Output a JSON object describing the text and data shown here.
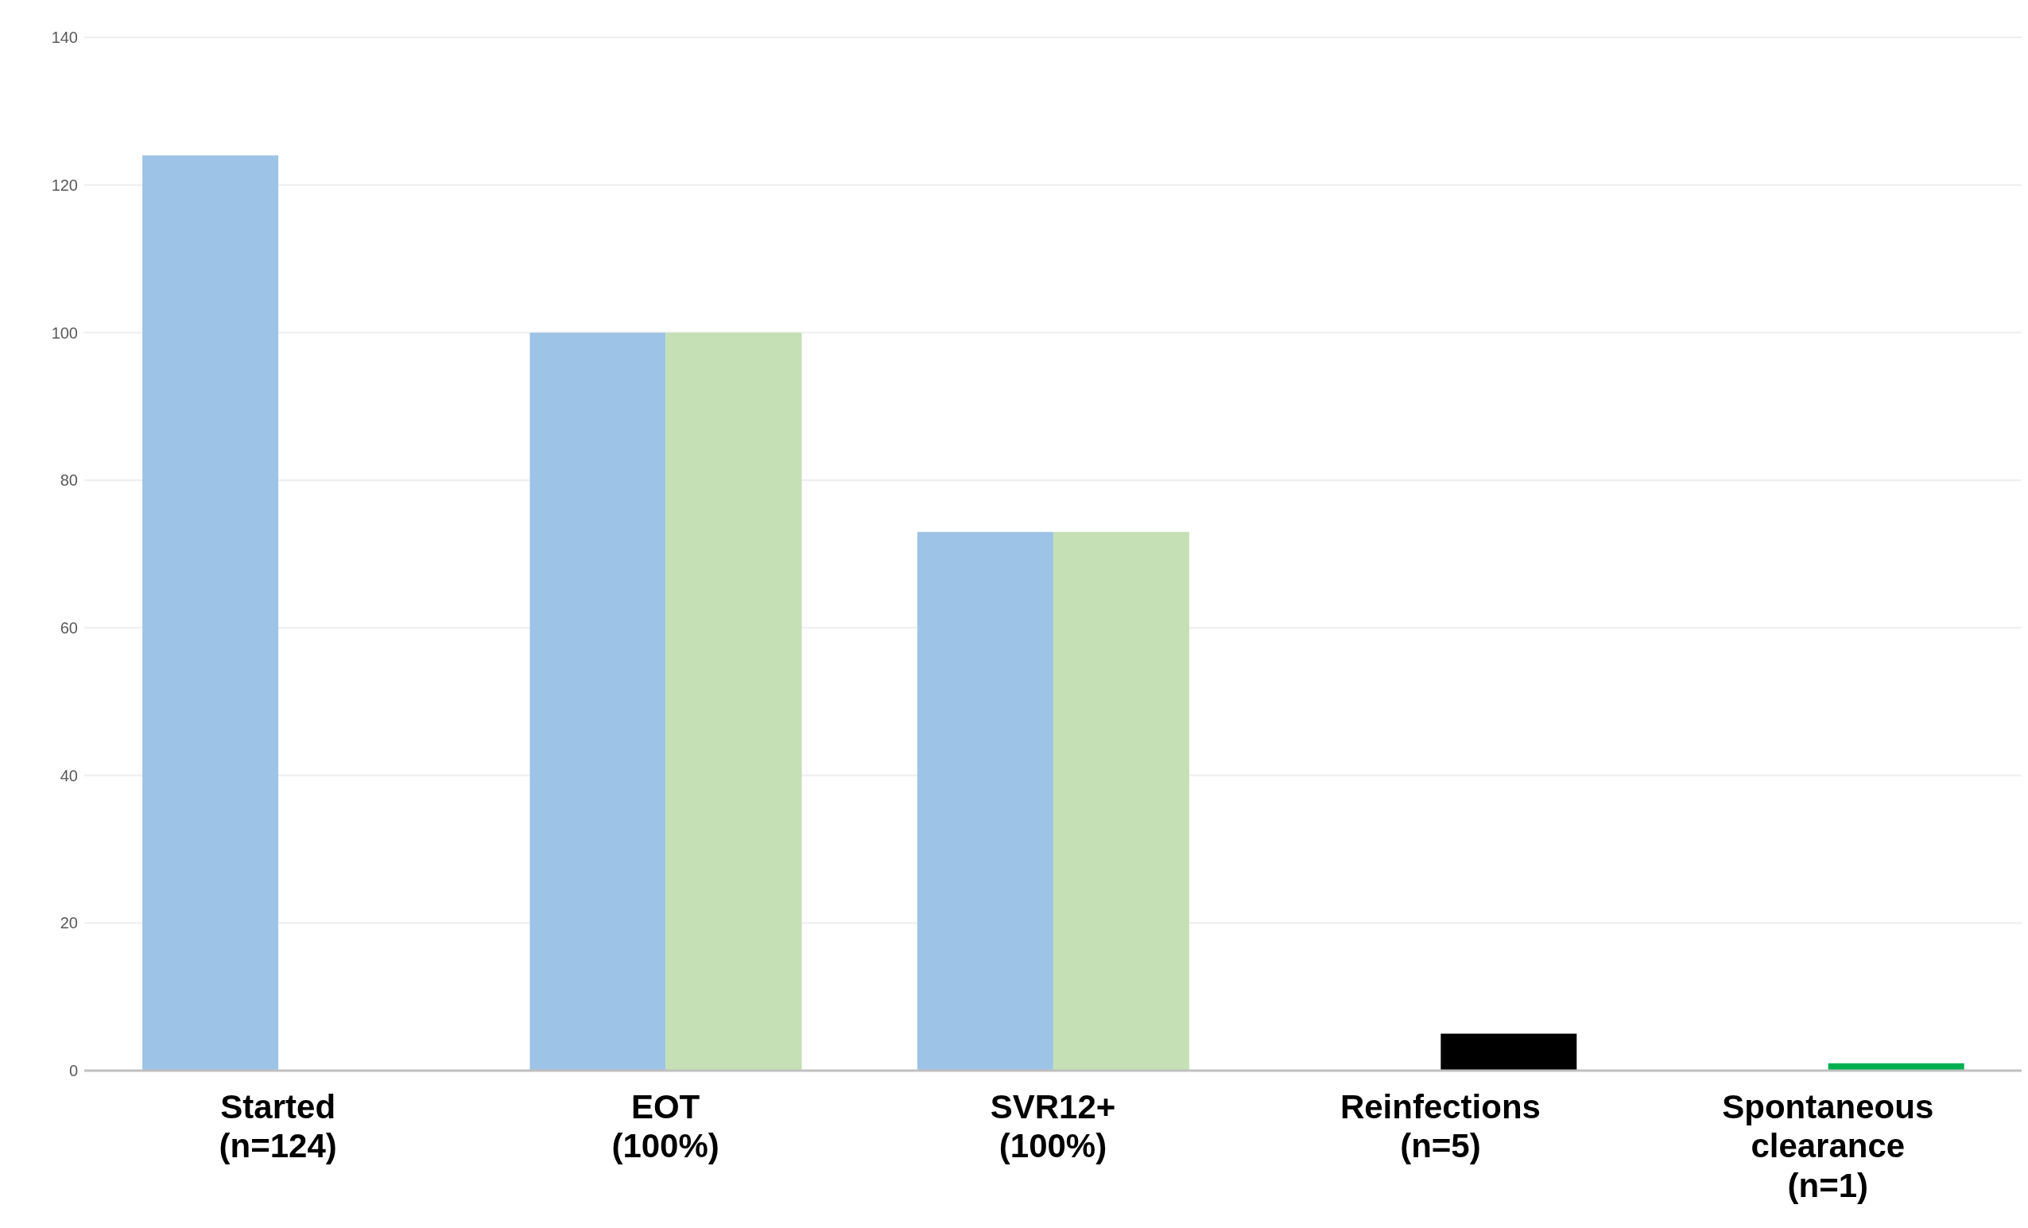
{
  "chart_data": {
    "type": "bar",
    "categories": [
      "Started\n(n=124)",
      "EOT\n(100%)",
      "SVR12+\n(100%)",
      "Reinfections\n(n=5)",
      "Spontaneous\nclearance\n(n=1)"
    ],
    "series": [
      {
        "color": "#9dc3e6",
        "values": [
          124,
          100,
          73,
          null,
          null
        ]
      },
      {
        "colors": [
          "#c5e0b4",
          "#c5e0b4",
          "#c5e0b4",
          "#000000",
          "#00b050"
        ],
        "values": [
          null,
          100,
          73,
          5,
          1
        ]
      }
    ],
    "ylim": [
      0,
      140
    ],
    "yticks": [
      0,
      20,
      40,
      60,
      80,
      100,
      120,
      140
    ],
    "grid": "y",
    "legend": false
  }
}
